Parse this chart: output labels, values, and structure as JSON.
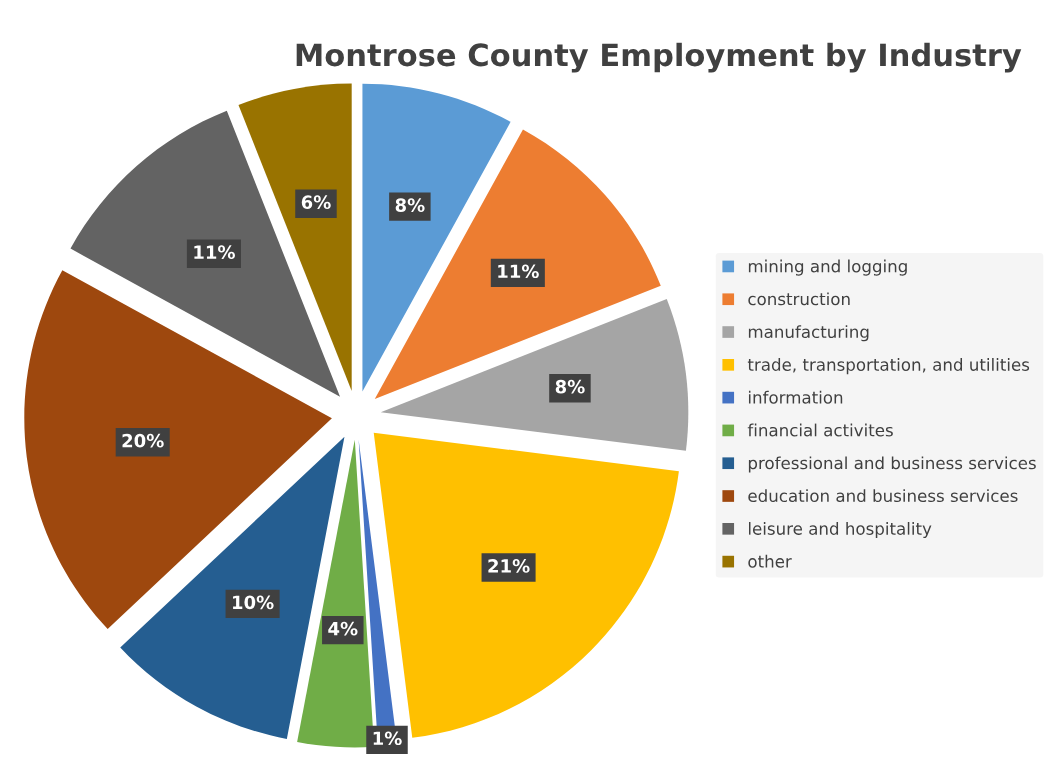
{
  "chart_data": {
    "type": "pie",
    "title": "Montrose County Employment by Industry",
    "categories": [
      "mining and logging",
      "construction",
      "manufacturing",
      "trade, transportation, and utilities",
      "information",
      "financial activites",
      "professional and business services",
      "education and business services",
      "leisure and hospitality",
      "other"
    ],
    "values": [
      8,
      11,
      8,
      21,
      1,
      4,
      10,
      20,
      11,
      6
    ],
    "value_labels": [
      "8%",
      "11%",
      "8%",
      "21%",
      "1%",
      "4%",
      "10%",
      "20%",
      "11%",
      "6%"
    ],
    "colors": [
      "#5b9bd5",
      "#ed7d31",
      "#a5a5a5",
      "#ffc000",
      "#4472c4",
      "#70ad47",
      "#255e91",
      "#9e480e",
      "#636363",
      "#997300"
    ],
    "legend": "right"
  }
}
